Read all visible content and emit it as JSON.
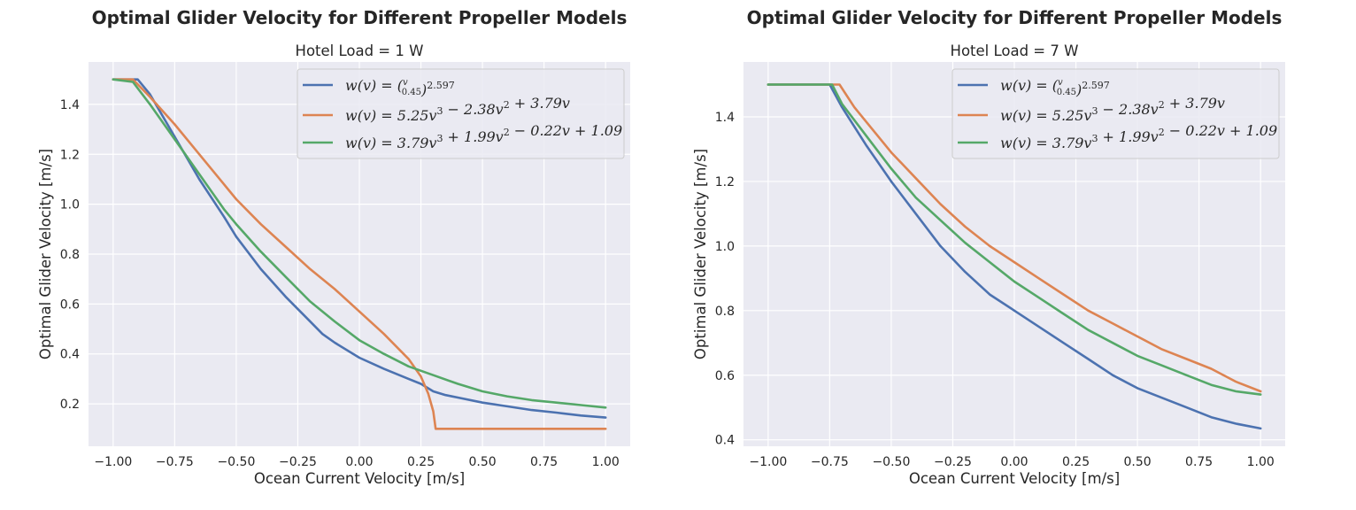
{
  "chart_data": [
    {
      "type": "line",
      "title": "Optimal Glider Velocity for Different Propeller Models",
      "subtitle": "Hotel Load = 1 W",
      "xlabel": "Ocean Current Velocity [m/s]",
      "ylabel": "Optimal Glider Velocity [m/s]",
      "xlim": [
        -1.1,
        1.1
      ],
      "ylim": [
        0.03,
        1.57
      ],
      "xticks": [
        -1.0,
        -0.75,
        -0.5,
        -0.25,
        0.0,
        0.25,
        0.5,
        0.75,
        1.0
      ],
      "xtick_labels": [
        "−1.00",
        "−0.75",
        "−0.50",
        "−0.25",
        "0.00",
        "0.25",
        "0.50",
        "0.75",
        "1.00"
      ],
      "yticks": [
        0.2,
        0.4,
        0.6,
        0.8,
        1.0,
        1.2,
        1.4
      ],
      "ytick_labels": [
        "0.2",
        "0.4",
        "0.6",
        "0.8",
        "1.0",
        "1.2",
        "1.4"
      ],
      "grid": true,
      "legend_placement": "upper right",
      "series": [
        {
          "name": "w(v) = (v/0.45)^2.597",
          "color": "#4c72b0",
          "x": [
            -1.0,
            -0.9,
            -0.85,
            -0.75,
            -0.65,
            -0.55,
            -0.5,
            -0.4,
            -0.3,
            -0.2,
            -0.15,
            -0.1,
            0.0,
            0.1,
            0.2,
            0.25,
            0.3,
            0.35,
            0.4,
            0.5,
            0.6,
            0.7,
            0.8,
            0.9,
            1.0
          ],
          "values": [
            1.5,
            1.5,
            1.44,
            1.27,
            1.1,
            0.95,
            0.87,
            0.74,
            0.63,
            0.53,
            0.48,
            0.445,
            0.385,
            0.34,
            0.3,
            0.28,
            0.25,
            0.235,
            0.225,
            0.205,
            0.19,
            0.175,
            0.165,
            0.153,
            0.145
          ]
        },
        {
          "name": "w(v) = 5.25v^3 − 2.38v^2 + 3.79v",
          "color": "#dd8452",
          "x": [
            -1.0,
            -0.92,
            -0.85,
            -0.75,
            -0.65,
            -0.55,
            -0.5,
            -0.4,
            -0.3,
            -0.2,
            -0.1,
            0.0,
            0.1,
            0.2,
            0.25,
            0.28,
            0.3,
            0.31,
            1.0
          ],
          "values": [
            1.5,
            1.5,
            1.43,
            1.32,
            1.2,
            1.08,
            1.02,
            0.92,
            0.83,
            0.74,
            0.66,
            0.57,
            0.48,
            0.38,
            0.31,
            0.24,
            0.17,
            0.1,
            0.1
          ]
        },
        {
          "name": "w(v) = 3.79v^3 + 1.99v^2 − 0.22v + 1.09",
          "color": "#55a868",
          "x": [
            -1.0,
            -0.92,
            -0.85,
            -0.75,
            -0.65,
            -0.55,
            -0.5,
            -0.4,
            -0.3,
            -0.2,
            -0.1,
            0.0,
            0.1,
            0.2,
            0.3,
            0.4,
            0.5,
            0.6,
            0.7,
            0.8,
            0.9,
            1.0
          ],
          "values": [
            1.5,
            1.49,
            1.4,
            1.26,
            1.12,
            0.98,
            0.92,
            0.81,
            0.71,
            0.61,
            0.53,
            0.455,
            0.4,
            0.35,
            0.315,
            0.28,
            0.25,
            0.23,
            0.215,
            0.205,
            0.195,
            0.185
          ]
        }
      ]
    },
    {
      "type": "line",
      "title": "Optimal Glider Velocity for Different Propeller Models",
      "subtitle": "Hotel Load = 7 W",
      "xlabel": "Ocean Current Velocity [m/s]",
      "ylabel": "Optimal Glider Velocity [m/s]",
      "xlim": [
        -1.1,
        1.1
      ],
      "ylim": [
        0.38,
        1.57
      ],
      "xticks": [
        -1.0,
        -0.75,
        -0.5,
        -0.25,
        0.0,
        0.25,
        0.5,
        0.75,
        1.0
      ],
      "xtick_labels": [
        "−1.00",
        "−0.75",
        "−0.50",
        "−0.25",
        "0.00",
        "0.25",
        "0.50",
        "0.75",
        "1.00"
      ],
      "yticks": [
        0.4,
        0.6,
        0.8,
        1.0,
        1.2,
        1.4
      ],
      "ytick_labels": [
        "0.4",
        "0.6",
        "0.8",
        "1.0",
        "1.2",
        "1.4"
      ],
      "grid": true,
      "legend_placement": "upper right",
      "series": [
        {
          "name": "w(v) = (v/0.45)^2.597",
          "color": "#4c72b0",
          "x": [
            -1.0,
            -0.75,
            -0.7,
            -0.6,
            -0.5,
            -0.4,
            -0.3,
            -0.2,
            -0.1,
            0.0,
            0.1,
            0.2,
            0.3,
            0.4,
            0.5,
            0.6,
            0.7,
            0.8,
            0.9,
            1.0
          ],
          "values": [
            1.5,
            1.5,
            1.43,
            1.31,
            1.2,
            1.1,
            1.0,
            0.92,
            0.85,
            0.8,
            0.75,
            0.7,
            0.65,
            0.6,
            0.56,
            0.53,
            0.5,
            0.47,
            0.45,
            0.435
          ]
        },
        {
          "name": "w(v) = 5.25v^3 − 2.38v^2 + 3.79v",
          "color": "#dd8452",
          "x": [
            -1.0,
            -0.71,
            -0.65,
            -0.5,
            -0.4,
            -0.3,
            -0.2,
            -0.1,
            0.0,
            0.1,
            0.2,
            0.3,
            0.4,
            0.5,
            0.6,
            0.7,
            0.8,
            0.9,
            1.0
          ],
          "values": [
            1.5,
            1.5,
            1.43,
            1.29,
            1.21,
            1.13,
            1.06,
            1.0,
            0.95,
            0.9,
            0.85,
            0.8,
            0.76,
            0.72,
            0.68,
            0.65,
            0.62,
            0.58,
            0.55
          ]
        },
        {
          "name": "w(v) = 3.79v^3 + 1.99v^2 − 0.22v + 1.09",
          "color": "#55a868",
          "x": [
            -1.0,
            -0.74,
            -0.7,
            -0.6,
            -0.5,
            -0.4,
            -0.3,
            -0.2,
            -0.1,
            0.0,
            0.1,
            0.2,
            0.3,
            0.4,
            0.5,
            0.6,
            0.7,
            0.8,
            0.9,
            1.0
          ],
          "values": [
            1.5,
            1.5,
            1.44,
            1.34,
            1.24,
            1.15,
            1.08,
            1.01,
            0.95,
            0.89,
            0.84,
            0.79,
            0.74,
            0.7,
            0.66,
            0.63,
            0.6,
            0.57,
            0.55,
            0.54
          ]
        }
      ]
    }
  ]
}
